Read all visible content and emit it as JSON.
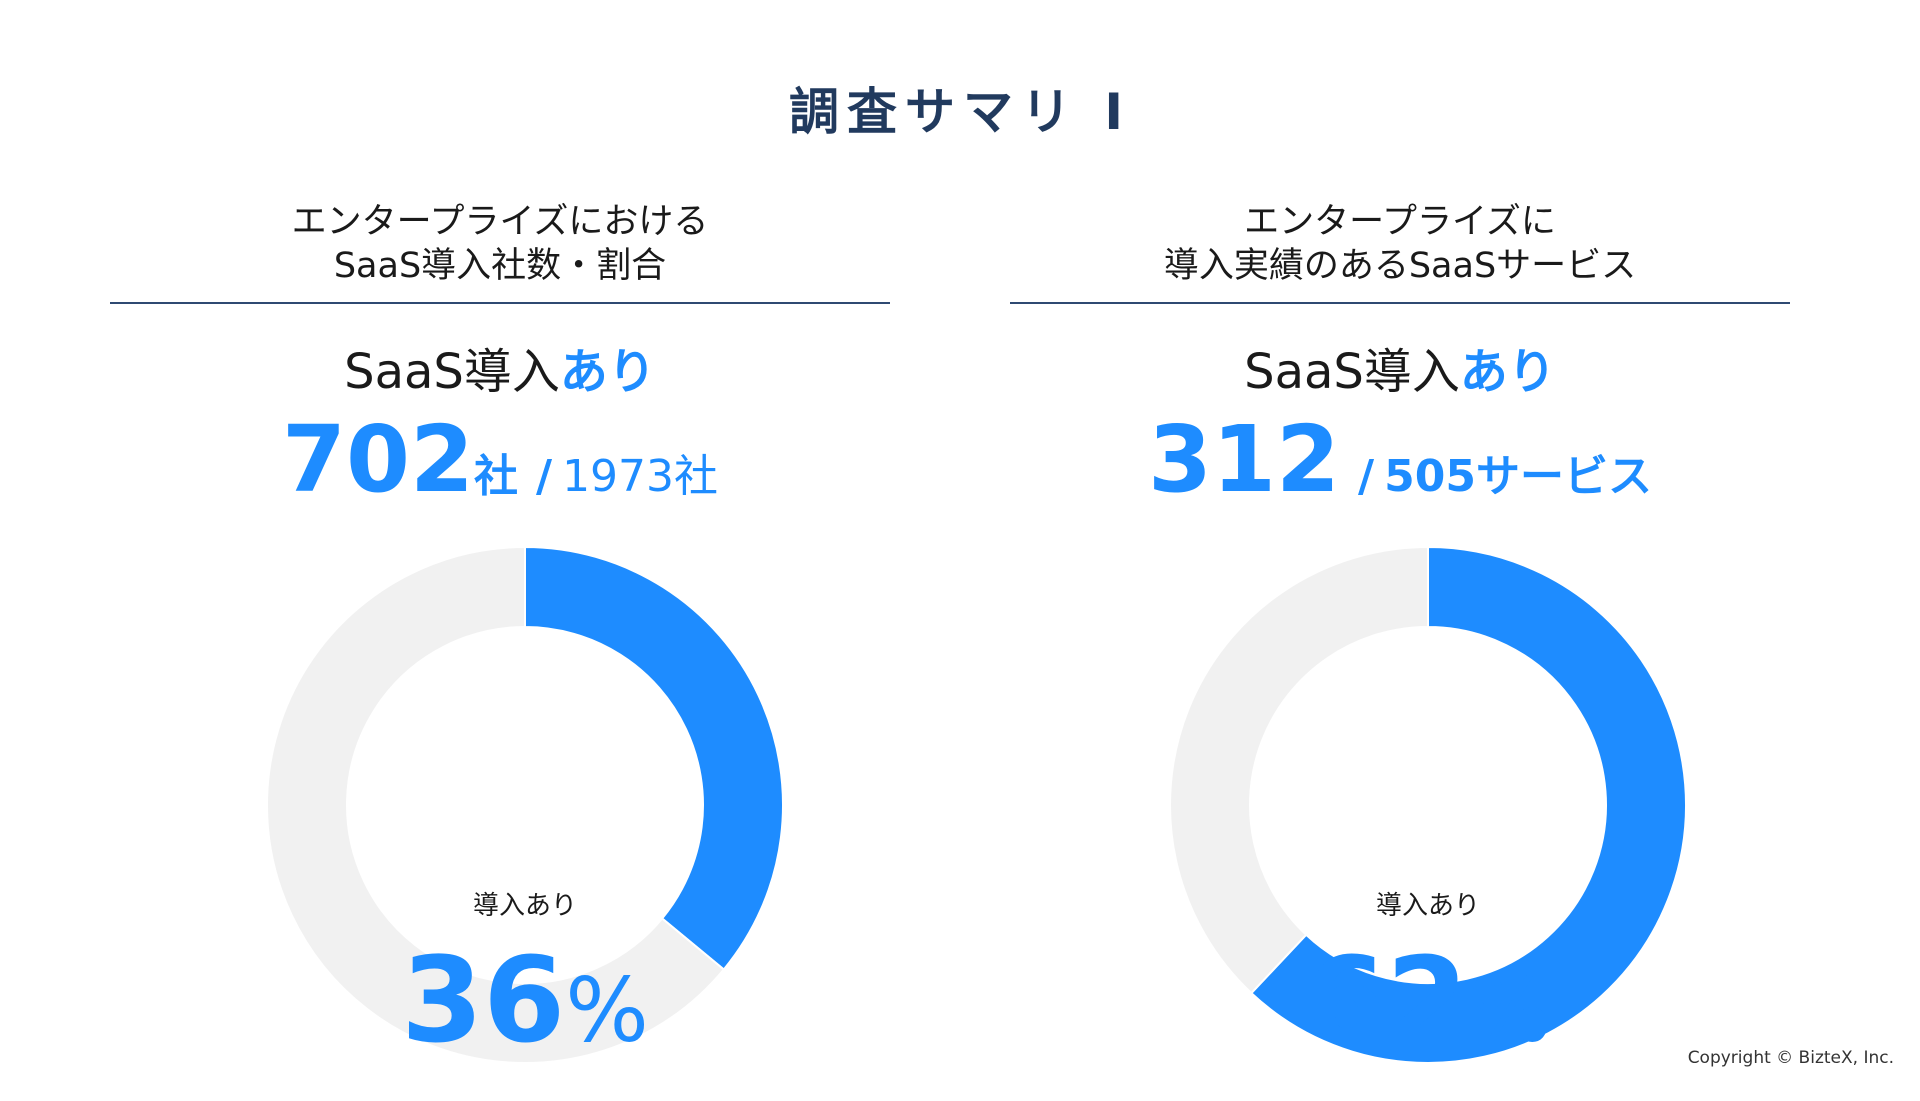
{
  "header": {
    "title": "調査サマリ Ⅰ"
  },
  "panels": [
    {
      "title_line1": "エンタープライズにおける",
      "title_line2": "SaaS導入社数・割合",
      "intro_prefix": "SaaS導入",
      "intro_accent": "あり",
      "count": "702",
      "count_unit": "社",
      "slash": "/",
      "total": "1973社",
      "center_label": "導入あり",
      "center_value": "36",
      "center_unit": "%"
    },
    {
      "title_line1": "エンタープライズに",
      "title_line2": "導入実績のあるSaaSサービス",
      "intro_prefix": "SaaS導入",
      "intro_accent": "あり",
      "count": "312",
      "count_unit": "",
      "slash": "/",
      "total": "505サービス",
      "center_label": "導入あり",
      "center_value": "62",
      "center_unit": "%"
    }
  ],
  "chart_data": [
    {
      "type": "pie",
      "title": "エンタープライズにおけるSaaS導入社数・割合",
      "categories": [
        "導入あり",
        ""
      ],
      "values": [
        36,
        64
      ],
      "unit": "%",
      "counts": [
        702,
        1271
      ],
      "colors": [
        "#1e8cff",
        "#f1f1f1"
      ]
    },
    {
      "type": "pie",
      "title": "エンタープライズに導入実績のあるSaaSサービス",
      "categories": [
        "導入あり",
        ""
      ],
      "values": [
        62,
        38
      ],
      "unit": "%",
      "counts": [
        312,
        193
      ],
      "colors": [
        "#1e8cff",
        "#f1f1f1"
      ]
    }
  ],
  "footer": {
    "copyright": "Copyright © BizteX, Inc."
  }
}
